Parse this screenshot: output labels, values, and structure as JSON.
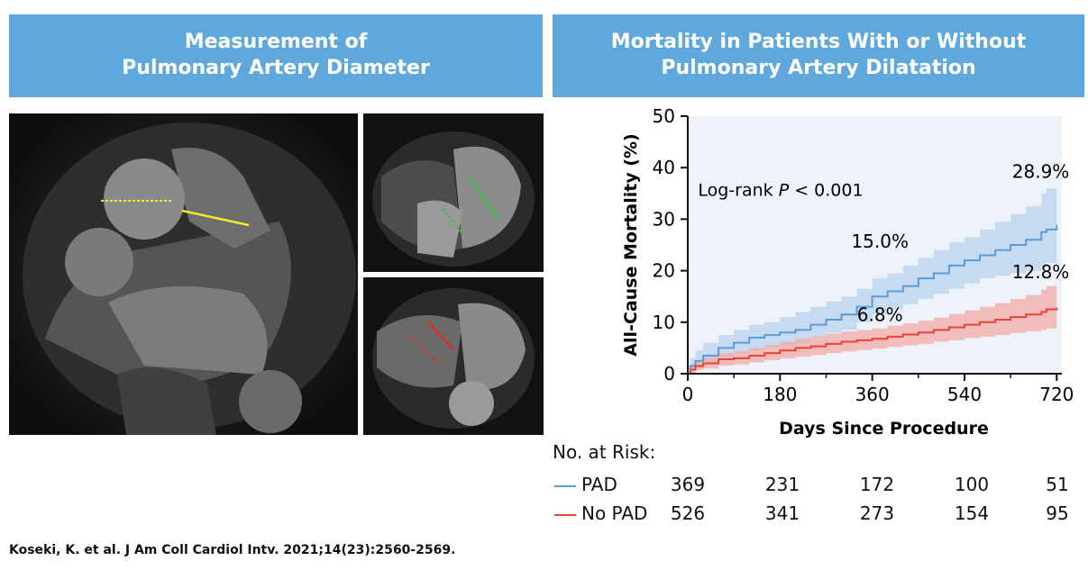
{
  "left_banner": {
    "line1": "Measurement of",
    "line2": "Pulmonary Artery Diameter"
  },
  "right_banner": {
    "line1": "Mortality in Patients With or Without",
    "line2": "Pulmonary Artery Dilatation"
  },
  "chart_data": {
    "type": "line",
    "xlabel": "Days Since Procedure",
    "ylabel": "All-Cause Mortality (%)",
    "xlim": [
      0,
      730
    ],
    "ylim": [
      0,
      50
    ],
    "xticks": [
      0,
      180,
      360,
      540,
      720
    ],
    "yticks": [
      0,
      10,
      20,
      30,
      40,
      50
    ],
    "grid": false,
    "background": "#eef3fb",
    "annotation": {
      "prefix": "Log-rank ",
      "italic": "P",
      "suffix": " < 0.001"
    },
    "series": [
      {
        "name": "PAD",
        "color": "#5b9bd5",
        "band_color": "#b8d3ee",
        "x": [
          0,
          5,
          15,
          30,
          60,
          90,
          120,
          150,
          180,
          210,
          240,
          270,
          300,
          330,
          360,
          390,
          420,
          450,
          480,
          510,
          540,
          570,
          600,
          630,
          660,
          690,
          700,
          720
        ],
        "y": [
          0,
          1.5,
          2.5,
          3.5,
          5,
          6,
          7,
          7.5,
          8,
          8.5,
          9.5,
          10.5,
          11.5,
          13,
          15,
          16,
          17,
          18.5,
          19.5,
          21,
          22,
          23,
          24,
          25,
          26,
          27.5,
          28,
          28.9
        ],
        "lower": [
          0,
          0.5,
          1.2,
          2,
          3,
          4,
          4.5,
          5,
          5.5,
          6,
          7,
          8,
          8.5,
          10,
          11.5,
          12.5,
          13.5,
          14.5,
          15.5,
          16.5,
          17.5,
          18.5,
          19,
          19.5,
          20,
          21,
          21.5,
          22
        ],
        "upper": [
          0,
          3,
          4.5,
          6,
          7.5,
          8.5,
          9.5,
          10,
          11,
          12,
          13,
          14,
          15,
          16.5,
          18.5,
          19.5,
          21,
          22.5,
          24,
          25.5,
          26.5,
          28,
          29.5,
          31,
          32.5,
          35,
          36,
          36.5
        ]
      },
      {
        "name": "No PAD",
        "color": "#e8423b",
        "band_color": "#f2aaa3",
        "x": [
          0,
          5,
          15,
          30,
          60,
          90,
          120,
          150,
          180,
          210,
          240,
          270,
          300,
          330,
          360,
          390,
          420,
          450,
          480,
          510,
          540,
          570,
          600,
          630,
          660,
          690,
          700,
          720
        ],
        "y": [
          0,
          0.8,
          1.5,
          2,
          2.8,
          3,
          3.5,
          4,
          4.5,
          5,
          5.3,
          5.8,
          6.2,
          6.5,
          6.8,
          7.2,
          7.6,
          8,
          8.5,
          9,
          9.5,
          10,
          10.5,
          11,
          11.5,
          12,
          12.5,
          12.8
        ],
        "lower": [
          0,
          0.2,
          0.7,
          1,
          1.6,
          1.8,
          2.2,
          2.6,
          3,
          3.3,
          3.6,
          4,
          4.3,
          4.6,
          4.9,
          5.2,
          5.5,
          5.8,
          6.2,
          6.5,
          6.9,
          7.2,
          7.5,
          7.9,
          8.2,
          8.5,
          8.8,
          9.2
        ],
        "upper": [
          0,
          1.6,
          2.5,
          3.2,
          4,
          4.4,
          5,
          5.6,
          6.2,
          6.8,
          7.2,
          7.8,
          8.2,
          8.5,
          8.8,
          9.3,
          9.8,
          10.3,
          10.9,
          11.6,
          12.3,
          13,
          13.7,
          14.5,
          15.3,
          16.3,
          17,
          17.8
        ]
      }
    ],
    "point_labels": [
      {
        "text": "28.9%",
        "x": 720,
        "y": 38,
        "anchor": "end"
      },
      {
        "text": "15.0%",
        "x": 375,
        "y": 24.5,
        "anchor": "middle"
      },
      {
        "text": "12.8%",
        "x": 720,
        "y": 18.5,
        "anchor": "end"
      },
      {
        "text": "6.8%",
        "x": 375,
        "y": 10.2,
        "anchor": "middle"
      }
    ]
  },
  "risk_table": {
    "title": "No. at Risk:",
    "rows": [
      {
        "label": "PAD",
        "color": "#5b9bd5",
        "values": [
          "369",
          "231",
          "172",
          "100",
          "51"
        ]
      },
      {
        "label": "No PAD",
        "color": "#e8423b",
        "values": [
          "526",
          "341",
          "273",
          "154",
          "95"
        ]
      }
    ]
  },
  "citation": "Koseki, K. et al. J Am Coll Cardiol Intv. 2021;14(23):2560-2569.",
  "scan_images": [
    {
      "name": "ct-axial-scan",
      "arrows": [
        "#f2ea2c",
        "#f2ea2c"
      ]
    },
    {
      "name": "ct-four-chamber-scan-pad",
      "arrows": [
        "#3fbf4a",
        "#3fbf4a"
      ]
    },
    {
      "name": "ct-four-chamber-scan-no-pad",
      "arrows": [
        "#e8282a",
        "#e8282a"
      ]
    }
  ]
}
